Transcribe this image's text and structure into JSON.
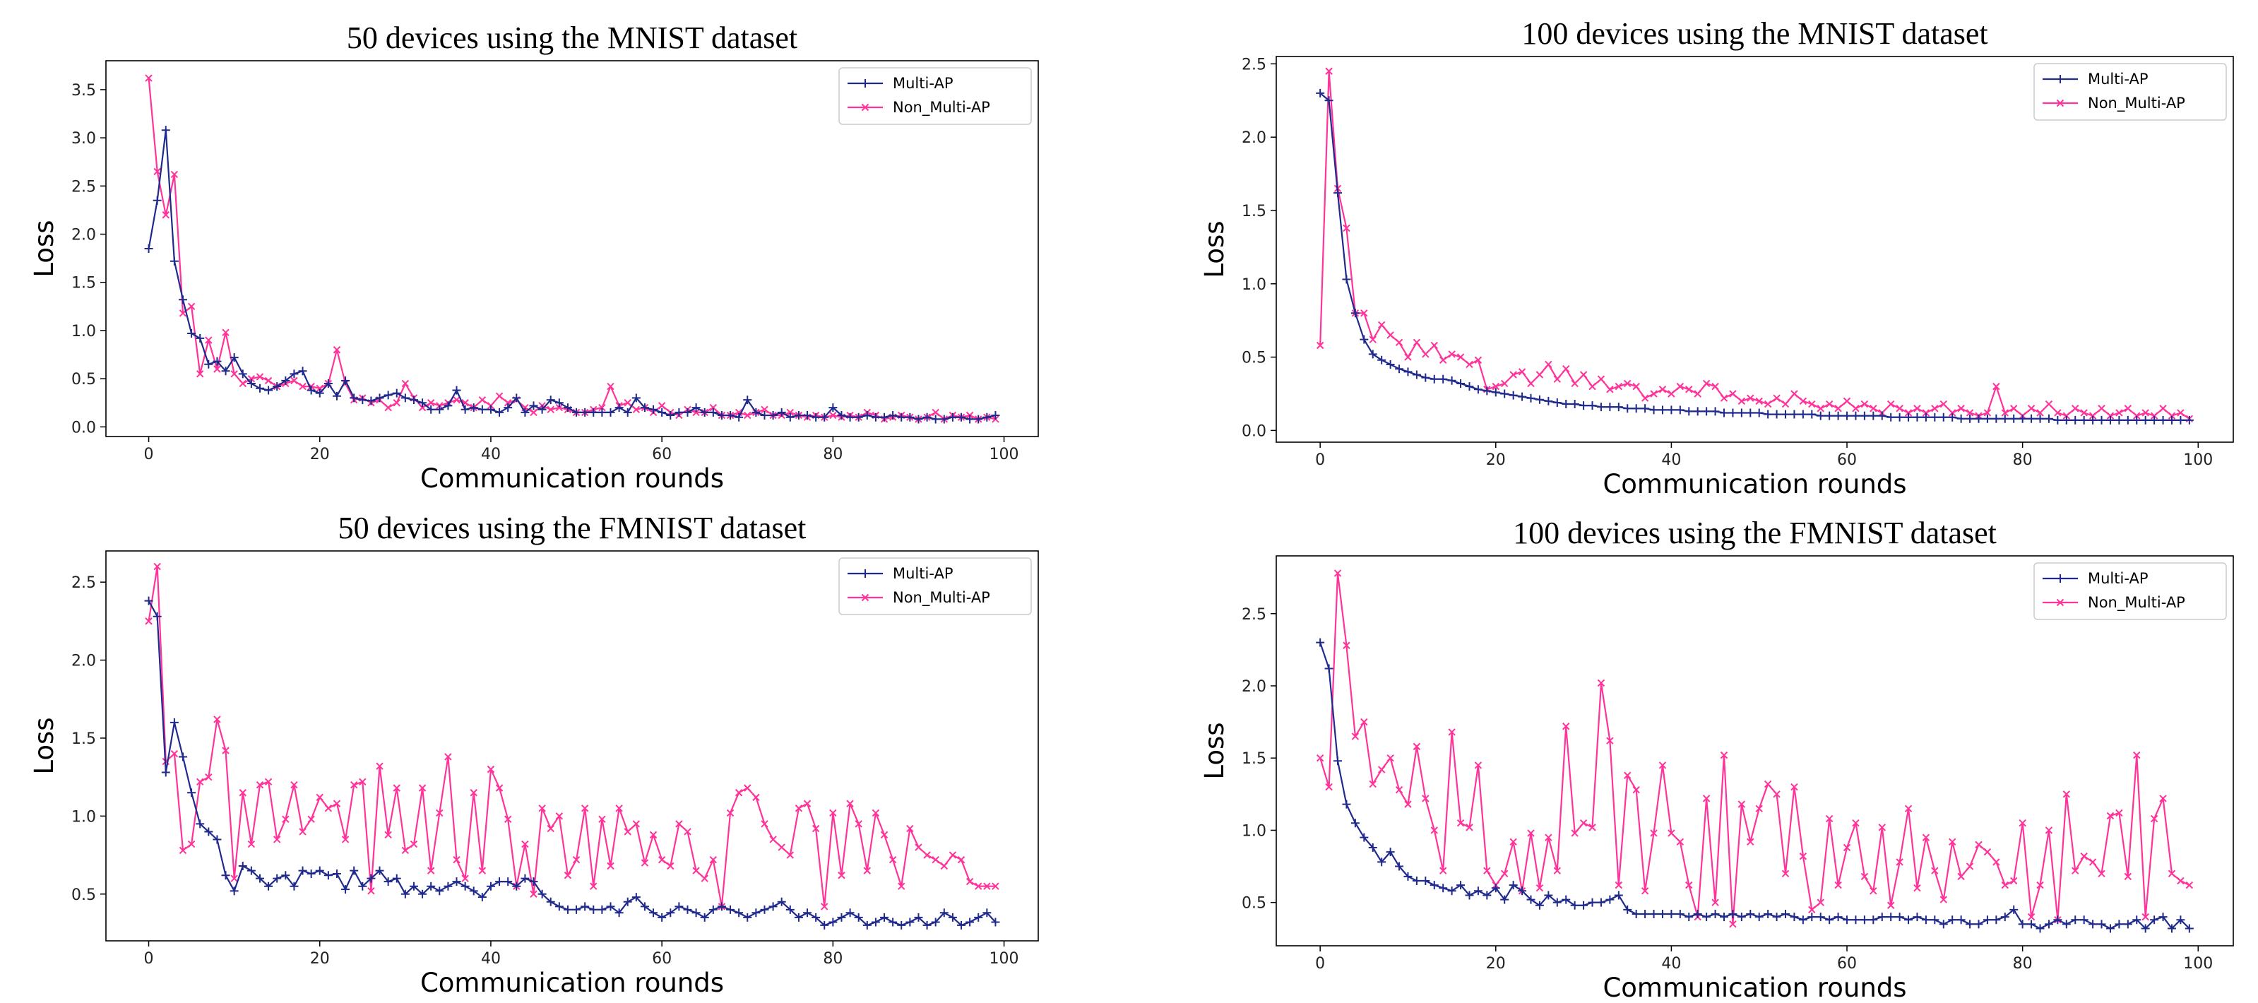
{
  "figure": {
    "xlabel": "Communication rounds",
    "ylabel": "Loss"
  },
  "colors": {
    "multi_ap": "#1f2a8c",
    "non_multi_ap": "#ff3399"
  },
  "chart_data": [
    {
      "type": "line",
      "title": "50 devices using the MNIST dataset",
      "xlabel": "Communication rounds",
      "ylabel": "Loss",
      "xlim": [
        -5,
        104
      ],
      "ylim": [
        -0.1,
        3.8
      ],
      "xticks": [
        0,
        20,
        40,
        60,
        80,
        100
      ],
      "yticks": [
        0.0,
        0.5,
        1.0,
        1.5,
        2.0,
        2.5,
        3.0,
        3.5
      ],
      "ytick_labels": [
        "0.0",
        "0.5",
        "1.0",
        "1.5",
        "2.0",
        "2.5",
        "3.0",
        "3.5"
      ],
      "legend": "top-right",
      "series": [
        {
          "name": "Multi-AP",
          "marker": "+",
          "color": "#1f2a8c",
          "values": [
            1.85,
            2.35,
            3.08,
            1.72,
            1.32,
            0.97,
            0.92,
            0.65,
            0.68,
            0.58,
            0.72,
            0.55,
            0.45,
            0.4,
            0.38,
            0.42,
            0.48,
            0.55,
            0.58,
            0.38,
            0.35,
            0.45,
            0.32,
            0.48,
            0.3,
            0.28,
            0.27,
            0.3,
            0.33,
            0.35,
            0.3,
            0.28,
            0.25,
            0.18,
            0.18,
            0.22,
            0.38,
            0.18,
            0.2,
            0.18,
            0.18,
            0.15,
            0.2,
            0.3,
            0.15,
            0.22,
            0.18,
            0.28,
            0.25,
            0.2,
            0.15,
            0.15,
            0.15,
            0.15,
            0.15,
            0.2,
            0.15,
            0.3,
            0.2,
            0.18,
            0.15,
            0.12,
            0.15,
            0.15,
            0.2,
            0.15,
            0.15,
            0.12,
            0.12,
            0.1,
            0.28,
            0.15,
            0.12,
            0.12,
            0.15,
            0.1,
            0.12,
            0.12,
            0.1,
            0.1,
            0.2,
            0.12,
            0.1,
            0.1,
            0.12,
            0.1,
            0.1,
            0.12,
            0.1,
            0.1,
            0.08,
            0.1,
            0.08,
            0.08,
            0.1,
            0.1,
            0.08,
            0.08,
            0.1,
            0.12
          ]
        },
        {
          "name": "Non_Multi-AP",
          "marker": "x",
          "color": "#ff3399",
          "values": [
            3.62,
            2.65,
            2.2,
            2.62,
            1.18,
            1.25,
            0.55,
            0.9,
            0.6,
            0.98,
            0.55,
            0.45,
            0.5,
            0.52,
            0.48,
            0.42,
            0.45,
            0.48,
            0.42,
            0.42,
            0.4,
            0.45,
            0.8,
            0.45,
            0.28,
            0.3,
            0.25,
            0.28,
            0.2,
            0.25,
            0.45,
            0.3,
            0.2,
            0.25,
            0.22,
            0.25,
            0.28,
            0.25,
            0.2,
            0.28,
            0.22,
            0.32,
            0.25,
            0.28,
            0.2,
            0.15,
            0.22,
            0.18,
            0.2,
            0.18,
            0.15,
            0.15,
            0.18,
            0.2,
            0.42,
            0.22,
            0.25,
            0.18,
            0.2,
            0.15,
            0.22,
            0.15,
            0.12,
            0.18,
            0.15,
            0.15,
            0.2,
            0.12,
            0.12,
            0.15,
            0.12,
            0.15,
            0.18,
            0.12,
            0.12,
            0.15,
            0.12,
            0.1,
            0.12,
            0.1,
            0.12,
            0.1,
            0.12,
            0.1,
            0.15,
            0.12,
            0.08,
            0.1,
            0.12,
            0.1,
            0.08,
            0.1,
            0.15,
            0.08,
            0.12,
            0.1,
            0.12,
            0.08,
            0.1,
            0.08
          ]
        }
      ]
    },
    {
      "type": "line",
      "title": "100 devices using the MNIST dataset",
      "xlabel": "Communication rounds",
      "ylabel": "Loss",
      "xlim": [
        -5,
        104
      ],
      "ylim": [
        -0.08,
        2.55
      ],
      "xticks": [
        0,
        20,
        40,
        60,
        80,
        100
      ],
      "yticks": [
        0.0,
        0.5,
        1.0,
        1.5,
        2.0,
        2.5
      ],
      "ytick_labels": [
        "0.0",
        "0.5",
        "1.0",
        "1.5",
        "2.0",
        "2.5"
      ],
      "legend": "top-right",
      "series": [
        {
          "name": "Multi-AP",
          "marker": "+",
          "color": "#1f2a8c",
          "values": [
            2.3,
            2.25,
            1.62,
            1.03,
            0.8,
            0.62,
            0.52,
            0.48,
            0.45,
            0.42,
            0.4,
            0.38,
            0.36,
            0.35,
            0.35,
            0.34,
            0.32,
            0.3,
            0.28,
            0.27,
            0.26,
            0.25,
            0.24,
            0.23,
            0.22,
            0.21,
            0.2,
            0.19,
            0.18,
            0.18,
            0.17,
            0.17,
            0.16,
            0.16,
            0.16,
            0.15,
            0.15,
            0.15,
            0.14,
            0.14,
            0.14,
            0.14,
            0.13,
            0.13,
            0.13,
            0.13,
            0.12,
            0.12,
            0.12,
            0.12,
            0.12,
            0.11,
            0.11,
            0.11,
            0.11,
            0.11,
            0.11,
            0.1,
            0.1,
            0.1,
            0.1,
            0.1,
            0.1,
            0.1,
            0.1,
            0.09,
            0.09,
            0.09,
            0.09,
            0.09,
            0.09,
            0.09,
            0.09,
            0.08,
            0.08,
            0.08,
            0.08,
            0.08,
            0.08,
            0.08,
            0.08,
            0.08,
            0.08,
            0.08,
            0.07,
            0.07,
            0.07,
            0.07,
            0.07,
            0.07,
            0.07,
            0.07,
            0.07,
            0.07,
            0.07,
            0.07,
            0.07,
            0.07,
            0.07,
            0.07
          ]
        },
        {
          "name": "Non_Multi-AP",
          "marker": "x",
          "color": "#ff3399",
          "values": [
            0.58,
            2.45,
            1.65,
            1.38,
            0.8,
            0.8,
            0.62,
            0.72,
            0.65,
            0.6,
            0.5,
            0.6,
            0.52,
            0.58,
            0.48,
            0.52,
            0.5,
            0.45,
            0.48,
            0.28,
            0.3,
            0.32,
            0.38,
            0.4,
            0.32,
            0.38,
            0.45,
            0.35,
            0.42,
            0.32,
            0.38,
            0.3,
            0.35,
            0.28,
            0.3,
            0.32,
            0.3,
            0.22,
            0.25,
            0.28,
            0.25,
            0.3,
            0.28,
            0.25,
            0.32,
            0.3,
            0.22,
            0.25,
            0.2,
            0.22,
            0.2,
            0.18,
            0.22,
            0.18,
            0.25,
            0.2,
            0.18,
            0.15,
            0.18,
            0.15,
            0.2,
            0.15,
            0.18,
            0.15,
            0.12,
            0.18,
            0.15,
            0.12,
            0.15,
            0.12,
            0.15,
            0.18,
            0.12,
            0.15,
            0.12,
            0.1,
            0.12,
            0.3,
            0.12,
            0.15,
            0.1,
            0.15,
            0.12,
            0.18,
            0.12,
            0.1,
            0.15,
            0.12,
            0.1,
            0.15,
            0.1,
            0.12,
            0.15,
            0.1,
            0.12,
            0.1,
            0.15,
            0.1,
            0.12,
            0.08
          ]
        }
      ]
    },
    {
      "type": "line",
      "title": "50 devices using the FMNIST dataset",
      "xlabel": "Communication rounds",
      "ylabel": "Loss",
      "xlim": [
        -5,
        104
      ],
      "ylim": [
        0.2,
        2.7
      ],
      "xticks": [
        0,
        20,
        40,
        60,
        80,
        100
      ],
      "yticks": [
        0.5,
        1.0,
        1.5,
        2.0,
        2.5
      ],
      "ytick_labels": [
        "0.5",
        "1.0",
        "1.5",
        "2.0",
        "2.5"
      ],
      "legend": "top-right",
      "series": [
        {
          "name": "Multi-AP",
          "marker": "+",
          "color": "#1f2a8c",
          "values": [
            2.38,
            2.28,
            1.28,
            1.6,
            1.38,
            1.15,
            0.95,
            0.9,
            0.85,
            0.62,
            0.52,
            0.68,
            0.65,
            0.6,
            0.55,
            0.6,
            0.62,
            0.55,
            0.65,
            0.63,
            0.65,
            0.62,
            0.63,
            0.53,
            0.65,
            0.55,
            0.6,
            0.65,
            0.58,
            0.6,
            0.5,
            0.55,
            0.5,
            0.55,
            0.52,
            0.55,
            0.58,
            0.55,
            0.52,
            0.48,
            0.55,
            0.58,
            0.58,
            0.55,
            0.6,
            0.58,
            0.5,
            0.45,
            0.42,
            0.4,
            0.4,
            0.42,
            0.4,
            0.4,
            0.42,
            0.38,
            0.45,
            0.48,
            0.42,
            0.38,
            0.35,
            0.38,
            0.42,
            0.4,
            0.38,
            0.35,
            0.4,
            0.42,
            0.4,
            0.38,
            0.35,
            0.38,
            0.4,
            0.42,
            0.45,
            0.4,
            0.35,
            0.38,
            0.35,
            0.3,
            0.32,
            0.35,
            0.38,
            0.35,
            0.3,
            0.32,
            0.35,
            0.32,
            0.3,
            0.32,
            0.35,
            0.3,
            0.32,
            0.38,
            0.35,
            0.3,
            0.32,
            0.35,
            0.38,
            0.32
          ]
        },
        {
          "name": "Non_Multi-AP",
          "marker": "x",
          "color": "#ff3399",
          "values": [
            2.25,
            2.6,
            1.35,
            1.4,
            0.78,
            0.82,
            1.22,
            1.25,
            1.62,
            1.42,
            0.6,
            1.15,
            0.82,
            1.2,
            1.22,
            0.85,
            0.98,
            1.2,
            0.9,
            0.98,
            1.12,
            1.05,
            1.08,
            0.85,
            1.2,
            1.22,
            0.52,
            1.32,
            0.88,
            1.18,
            0.78,
            0.82,
            1.18,
            0.65,
            1.02,
            1.38,
            0.72,
            0.6,
            1.15,
            0.65,
            1.3,
            1.18,
            0.98,
            0.55,
            0.82,
            0.5,
            1.05,
            0.92,
            1.0,
            0.62,
            0.72,
            1.05,
            0.55,
            0.98,
            0.68,
            1.05,
            0.9,
            0.95,
            0.7,
            0.88,
            0.72,
            0.68,
            0.95,
            0.9,
            0.65,
            0.6,
            0.72,
            0.42,
            1.02,
            1.15,
            1.18,
            1.12,
            0.95,
            0.85,
            0.8,
            0.75,
            1.05,
            1.08,
            0.92,
            0.42,
            1.02,
            0.62,
            1.08,
            0.95,
            0.65,
            1.02,
            0.88,
            0.72,
            0.55,
            0.92,
            0.8,
            0.75,
            0.72,
            0.68,
            0.75,
            0.72,
            0.58,
            0.55,
            0.55,
            0.55
          ]
        }
      ]
    },
    {
      "type": "line",
      "title": "100 devices using the FMNIST dataset",
      "xlabel": "Communication rounds",
      "ylabel": "Loss",
      "xlim": [
        -5,
        104
      ],
      "ylim": [
        0.2,
        2.9
      ],
      "xticks": [
        0,
        20,
        40,
        60,
        80,
        100
      ],
      "yticks": [
        0.5,
        1.0,
        1.5,
        2.0,
        2.5
      ],
      "ytick_labels": [
        "0.5",
        "1.0",
        "1.5",
        "2.0",
        "2.5"
      ],
      "legend": "top-right",
      "series": [
        {
          "name": "Multi-AP",
          "marker": "+",
          "color": "#1f2a8c",
          "values": [
            2.3,
            2.12,
            1.48,
            1.18,
            1.05,
            0.95,
            0.88,
            0.78,
            0.85,
            0.75,
            0.68,
            0.65,
            0.65,
            0.62,
            0.6,
            0.58,
            0.62,
            0.55,
            0.58,
            0.55,
            0.6,
            0.52,
            0.62,
            0.58,
            0.52,
            0.48,
            0.55,
            0.5,
            0.52,
            0.48,
            0.48,
            0.5,
            0.5,
            0.52,
            0.55,
            0.45,
            0.42,
            0.42,
            0.42,
            0.42,
            0.42,
            0.42,
            0.4,
            0.42,
            0.4,
            0.42,
            0.4,
            0.42,
            0.4,
            0.42,
            0.4,
            0.42,
            0.4,
            0.42,
            0.4,
            0.38,
            0.4,
            0.4,
            0.38,
            0.4,
            0.38,
            0.38,
            0.38,
            0.38,
            0.4,
            0.4,
            0.4,
            0.38,
            0.4,
            0.38,
            0.38,
            0.35,
            0.38,
            0.38,
            0.35,
            0.35,
            0.38,
            0.38,
            0.4,
            0.45,
            0.35,
            0.35,
            0.32,
            0.35,
            0.38,
            0.35,
            0.38,
            0.38,
            0.35,
            0.35,
            0.32,
            0.35,
            0.35,
            0.38,
            0.32,
            0.38,
            0.4,
            0.32,
            0.38,
            0.32
          ]
        },
        {
          "name": "Non_Multi-AP",
          "marker": "x",
          "color": "#ff3399",
          "values": [
            1.5,
            1.3,
            2.78,
            2.28,
            1.65,
            1.75,
            1.32,
            1.42,
            1.5,
            1.28,
            1.18,
            1.58,
            1.22,
            1.0,
            0.72,
            1.68,
            1.05,
            1.02,
            1.45,
            0.72,
            0.62,
            0.7,
            0.92,
            0.58,
            0.98,
            0.6,
            0.95,
            0.72,
            1.72,
            0.98,
            1.05,
            1.02,
            2.02,
            1.62,
            0.62,
            1.38,
            1.28,
            0.58,
            0.98,
            1.45,
            0.98,
            0.92,
            0.62,
            0.4,
            1.22,
            0.5,
            1.52,
            0.35,
            1.18,
            0.92,
            1.15,
            1.32,
            1.25,
            0.7,
            1.3,
            0.82,
            0.45,
            0.5,
            1.08,
            0.62,
            0.88,
            1.05,
            0.68,
            0.58,
            1.02,
            0.48,
            0.78,
            1.15,
            0.6,
            0.95,
            0.72,
            0.52,
            0.92,
            0.68,
            0.75,
            0.9,
            0.85,
            0.78,
            0.62,
            0.65,
            1.05,
            0.4,
            0.62,
            1.0,
            0.38,
            1.25,
            0.72,
            0.82,
            0.78,
            0.7,
            1.1,
            1.12,
            0.68,
            1.52,
            0.4,
            1.08,
            1.22,
            0.7,
            0.65,
            0.62
          ]
        }
      ]
    }
  ]
}
